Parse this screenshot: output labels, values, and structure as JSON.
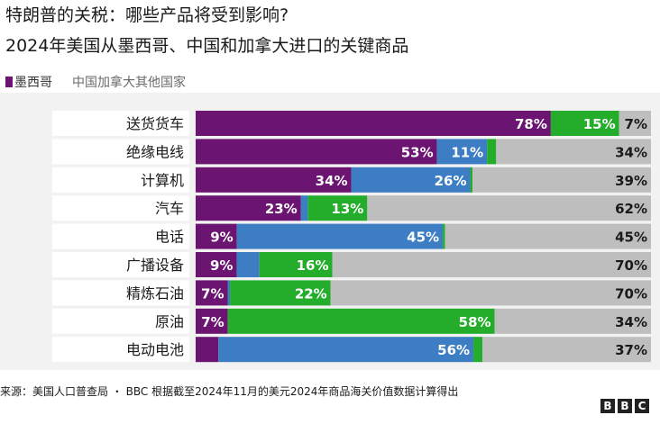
{
  "header": {
    "title": "特朗普的关税：哪些产品将受到影响?",
    "subtitle": "2024年美国从墨西哥、中国和加拿大进口的关键商品"
  },
  "legend": {
    "mexico": "墨西哥",
    "rest": "中国加拿大其他国家"
  },
  "colors": {
    "mexico": "#6b1472",
    "china": "#3c7dc4",
    "canada": "#23ad2b",
    "other": "#bebebe",
    "label_bg": "#ffffff",
    "panel_bg": "#f2f2f2"
  },
  "chart_data": {
    "type": "bar",
    "orientation": "horizontal",
    "stacked": true,
    "unit": "%",
    "xlim": [
      0,
      100
    ],
    "categories": [
      "送货货车",
      "绝缘电线",
      "计算机",
      "汽车",
      "电话",
      "广播设备",
      "精炼石油",
      "原油",
      "电动电池"
    ],
    "series": [
      {
        "name": "墨西哥",
        "values": [
          78,
          53,
          34,
          23,
          9,
          9,
          7,
          7,
          5
        ]
      },
      {
        "name": "中国",
        "values": [
          0,
          11,
          26,
          1.5,
          45,
          5,
          0.5,
          0,
          56
        ]
      },
      {
        "name": "加拿大",
        "values": [
          15,
          2,
          0.5,
          13,
          0.5,
          16,
          22,
          58,
          2
        ]
      },
      {
        "name": "其他国家",
        "values": [
          7,
          34,
          39,
          62,
          45,
          70,
          70,
          34,
          37
        ]
      }
    ],
    "labels": [
      [
        "78%",
        "",
        "15%",
        "7%"
      ],
      [
        "53%",
        "11%",
        "",
        "34%"
      ],
      [
        "34%",
        "26%",
        "",
        "39%"
      ],
      [
        "23%",
        "",
        "13%",
        "62%"
      ],
      [
        "9%",
        "45%",
        "",
        "45%"
      ],
      [
        "9%",
        "",
        "16%",
        "70%"
      ],
      [
        "7%",
        "",
        "22%",
        "70%"
      ],
      [
        "7%",
        "",
        "58%",
        "34%"
      ],
      [
        "",
        "56%",
        "",
        "37%"
      ]
    ]
  },
  "footer": {
    "source": "来源：美国人口普查局 ・ BBC 根据截至2024年11月的美元2024年商品海关价值数据计算得出",
    "logo": [
      "B",
      "B",
      "C"
    ]
  }
}
